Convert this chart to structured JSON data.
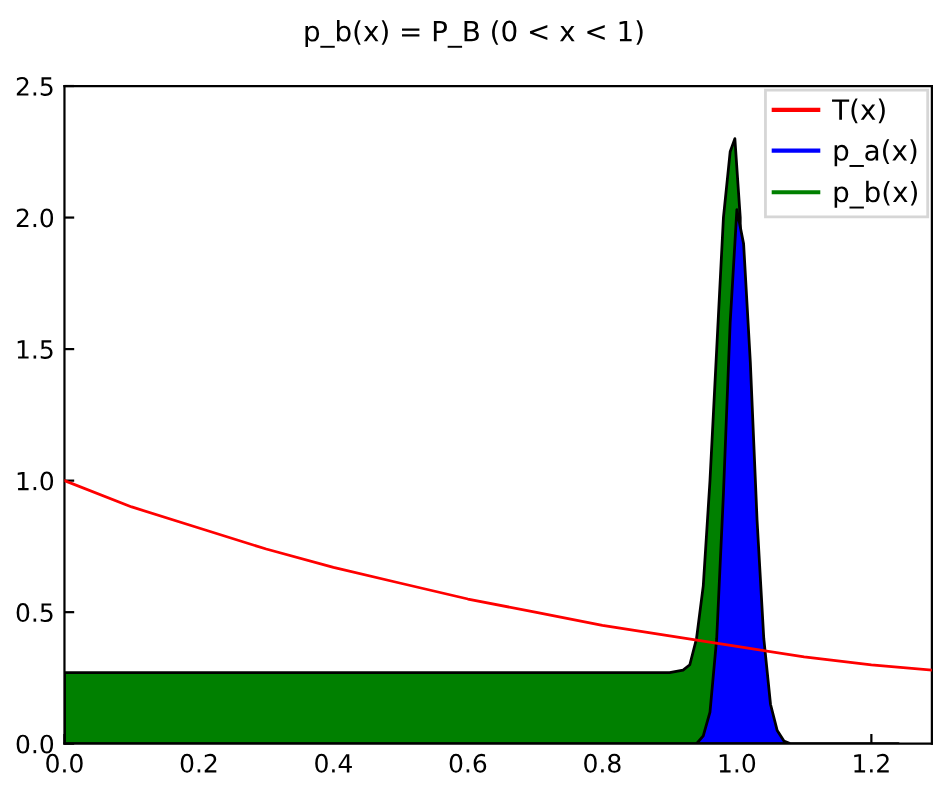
{
  "chart_data": {
    "type": "line",
    "title": "p_b(x) = P_B (0 < x < 1)",
    "xlim": [
      0,
      1.29
    ],
    "xticks": [
      {
        "value": 0,
        "label": "0.0"
      },
      0.2,
      0.4,
      0.6,
      0.8,
      {
        "value": 1,
        "label": "1.0"
      },
      1.2
    ],
    "ylim": [
      0,
      2.5
    ],
    "yticks": [
      {
        "value": 0,
        "label": "0.0"
      },
      0.5,
      {
        "value": 1,
        "label": "1.0"
      },
      1.5,
      {
        "value": 2,
        "label": "2.0"
      },
      2.5
    ],
    "grid": false,
    "legend": "top right",
    "series": [
      {
        "name": "T(x)",
        "color": "#ff0000",
        "x": [
          0,
          0.1,
          0.2,
          0.3,
          0.4,
          0.5,
          0.6,
          0.7,
          0.8,
          0.9,
          1.0,
          1.1,
          1.2,
          1.29
        ],
        "values": [
          1.0,
          0.9,
          0.82,
          0.74,
          0.67,
          0.61,
          0.55,
          0.5,
          0.45,
          0.41,
          0.37,
          0.33,
          0.3,
          0.28
        ]
      },
      {
        "name": "p_a(x)",
        "type": "area",
        "color": "#0000ff",
        "x": [
          0.94,
          0.95,
          0.96,
          0.97,
          0.98,
          0.99,
          1.0,
          1.01,
          1.02,
          1.03,
          1.04,
          1.05,
          1.06,
          1.07,
          1.08,
          1.24
        ],
        "values": [
          0,
          0.03,
          0.12,
          0.4,
          0.95,
          1.6,
          2.03,
          1.9,
          1.45,
          0.85,
          0.4,
          0.15,
          0.05,
          0.01,
          0,
          0
        ]
      },
      {
        "name": "p_b(x)",
        "type": "area",
        "color": "#008000",
        "x": [
          0,
          0.9,
          0.92,
          0.93,
          0.94,
          0.95,
          0.96,
          0.97,
          0.98,
          0.99,
          0.997,
          1.005
        ],
        "values": [
          0.27,
          0.27,
          0.28,
          0.3,
          0.4,
          0.6,
          1.0,
          1.5,
          2.0,
          2.25,
          2.3,
          2.0
        ]
      }
    ]
  }
}
